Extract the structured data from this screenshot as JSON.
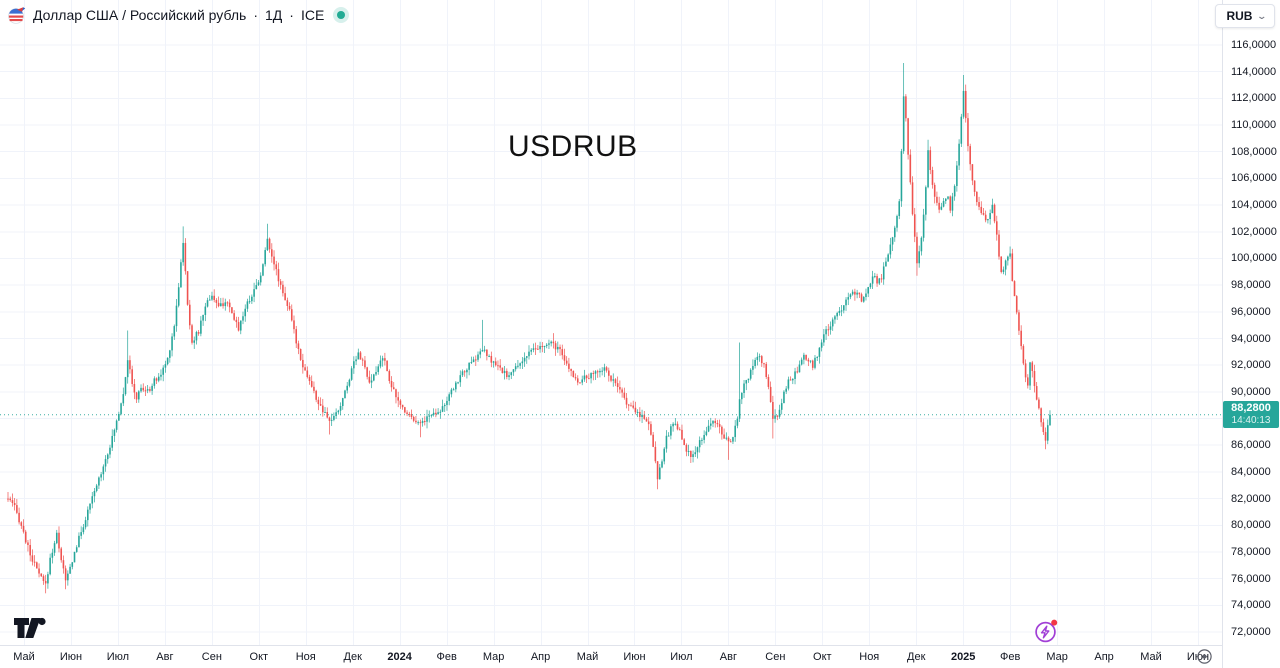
{
  "header": {
    "symbol_title": "Доллар США / Российский рубль",
    "separator": "·",
    "interval": "1Д",
    "exchange": "ICE",
    "status_dot_color": "#22ab94"
  },
  "currency_button": {
    "label": "RUB",
    "chevron": "⌄"
  },
  "watermark": "USDRUB",
  "price_scale": {
    "ticks": [
      "116,0000",
      "114,0000",
      "112,0000",
      "110,0000",
      "108,0000",
      "106,0000",
      "104,0000",
      "102,0000",
      "100,0000",
      "98,0000",
      "96,0000",
      "94,0000",
      "92,0000",
      "90,0000",
      "88,0000",
      "86,0000",
      "84,0000",
      "82,0000",
      "80,0000",
      "78,0000",
      "76,0000",
      "74,0000",
      "72,0000"
    ],
    "last_price_label": "88,2800",
    "countdown": "14:40:13",
    "badge_color": "#26a69a"
  },
  "time_scale": {
    "labels": [
      "Май",
      "Июн",
      "Июл",
      "Авг",
      "Сен",
      "Окт",
      "Ноя",
      "Дек",
      "2024",
      "Фев",
      "Мар",
      "Апр",
      "Май",
      "Июн",
      "Июл",
      "Авг",
      "Сен",
      "Окт",
      "Ноя",
      "Дек",
      "2025",
      "Фев",
      "Мар",
      "Апр",
      "Май",
      "Июн"
    ]
  },
  "chart_data": {
    "type": "candlestick",
    "symbol": "USDRUB",
    "interval": "1D",
    "exchange": "ICE",
    "last_price": 88.28,
    "up_color": "#26a69a",
    "down_color": "#ef5350",
    "grid_color": "#f0f3fa",
    "price_axis": {
      "min": 72,
      "max": 116,
      "step": 2
    },
    "candle_count": 471,
    "waypoints": [
      [
        0,
        82.0
      ],
      [
        3,
        81.3
      ],
      [
        6,
        80.0
      ],
      [
        9,
        78.3
      ],
      [
        12,
        77.0
      ],
      [
        15,
        76.0
      ],
      [
        17,
        75.5
      ],
      [
        19,
        77.5
      ],
      [
        22,
        79.3
      ],
      [
        24,
        77.5
      ],
      [
        26,
        75.8
      ],
      [
        28,
        76.8
      ],
      [
        31,
        78.5
      ],
      [
        34,
        80.0
      ],
      [
        38,
        82.0
      ],
      [
        41,
        83.5
      ],
      [
        44,
        85.0
      ],
      [
        47,
        86.5
      ],
      [
        50,
        88.5
      ],
      [
        52,
        90.0
      ],
      [
        54,
        92.5
      ],
      [
        56,
        90.5
      ],
      [
        58,
        89.5
      ],
      [
        60,
        90.3
      ],
      [
        63,
        90.0
      ],
      [
        66,
        90.8
      ],
      [
        69,
        91.3
      ],
      [
        72,
        92.5
      ],
      [
        75,
        95.0
      ],
      [
        77,
        98.0
      ],
      [
        79,
        101.3
      ],
      [
        81,
        96.5
      ],
      [
        83,
        93.8
      ],
      [
        86,
        94.5
      ],
      [
        89,
        96.5
      ],
      [
        92,
        97.3
      ],
      [
        95,
        96.3
      ],
      [
        98,
        96.8
      ],
      [
        101,
        95.8
      ],
      [
        104,
        94.8
      ],
      [
        107,
        96.3
      ],
      [
        110,
        97.3
      ],
      [
        113,
        98.3
      ],
      [
        115,
        99.5
      ],
      [
        117,
        101.5
      ],
      [
        119,
        100.3
      ],
      [
        121,
        99.0
      ],
      [
        124,
        97.5
      ],
      [
        127,
        96.0
      ],
      [
        130,
        93.8
      ],
      [
        133,
        92.0
      ],
      [
        136,
        90.8
      ],
      [
        139,
        89.5
      ],
      [
        142,
        88.5
      ],
      [
        145,
        87.8
      ],
      [
        148,
        88.3
      ],
      [
        150,
        89.0
      ],
      [
        153,
        90.5
      ],
      [
        156,
        92.3
      ],
      [
        158,
        93.0
      ],
      [
        161,
        91.8
      ],
      [
        163,
        90.5
      ],
      [
        166,
        91.5
      ],
      [
        169,
        92.7
      ],
      [
        172,
        91.0
      ],
      [
        175,
        89.5
      ],
      [
        178,
        88.8
      ],
      [
        181,
        88.3
      ],
      [
        184,
        87.9
      ],
      [
        186,
        87.6
      ],
      [
        189,
        88.1
      ],
      [
        192,
        88.4
      ],
      [
        195,
        88.7
      ],
      [
        198,
        89.3
      ],
      [
        201,
        90.3
      ],
      [
        204,
        91.2
      ],
      [
        207,
        91.8
      ],
      [
        210,
        92.3
      ],
      [
        214,
        93.2
      ],
      [
        217,
        92.5
      ],
      [
        220,
        92.0
      ],
      [
        223,
        91.5
      ],
      [
        226,
        91.2
      ],
      [
        229,
        91.8
      ],
      [
        233,
        92.6
      ],
      [
        237,
        93.1
      ],
      [
        240,
        93.3
      ],
      [
        243,
        93.5
      ],
      [
        246,
        93.6
      ],
      [
        249,
        93.0
      ],
      [
        251,
        92.3
      ],
      [
        254,
        91.5
      ],
      [
        257,
        90.8
      ],
      [
        260,
        91.0
      ],
      [
        264,
        91.3
      ],
      [
        267,
        91.7
      ],
      [
        269,
        91.8
      ],
      [
        272,
        91.0
      ],
      [
        275,
        90.3
      ],
      [
        278,
        89.5
      ],
      [
        281,
        88.8
      ],
      [
        284,
        88.4
      ],
      [
        287,
        88.1
      ],
      [
        289,
        87.6
      ],
      [
        291,
        86.0
      ],
      [
        293,
        83.6
      ],
      [
        295,
        85.0
      ],
      [
        297,
        86.5
      ],
      [
        299,
        87.3
      ],
      [
        301,
        87.8
      ],
      [
        303,
        87.0
      ],
      [
        305,
        85.8
      ],
      [
        308,
        85.2
      ],
      [
        310,
        85.4
      ],
      [
        312,
        86.2
      ],
      [
        315,
        87.2
      ],
      [
        318,
        87.8
      ],
      [
        320,
        87.5
      ],
      [
        322,
        87.0
      ],
      [
        325,
        86.1
      ],
      [
        327,
        86.8
      ],
      [
        329,
        87.8
      ],
      [
        330,
        89.5
      ],
      [
        332,
        90.5
      ],
      [
        334,
        91.0
      ],
      [
        336,
        92.0
      ],
      [
        339,
        92.6
      ],
      [
        341,
        92.0
      ],
      [
        343,
        90.3
      ],
      [
        345,
        87.9
      ],
      [
        347,
        88.3
      ],
      [
        349,
        89.3
      ],
      [
        352,
        90.8
      ],
      [
        356,
        91.5
      ],
      [
        359,
        92.6
      ],
      [
        361,
        92.3
      ],
      [
        363,
        92.0
      ],
      [
        365,
        92.8
      ],
      [
        367,
        93.8
      ],
      [
        369,
        94.5
      ],
      [
        371,
        95.0
      ],
      [
        374,
        95.8
      ],
      [
        376,
        96.3
      ],
      [
        378,
        97.0
      ],
      [
        380,
        97.4
      ],
      [
        382,
        97.5
      ],
      [
        385,
        96.9
      ],
      [
        387,
        97.2
      ],
      [
        390,
        98.8
      ],
      [
        392,
        98.3
      ],
      [
        394,
        98.6
      ],
      [
        397,
        100.5
      ],
      [
        400,
        102.3
      ],
      [
        402,
        104.5
      ],
      [
        404,
        112.0
      ],
      [
        405,
        110.5
      ],
      [
        406,
        108.0
      ],
      [
        407,
        105.5
      ],
      [
        409,
        101.5
      ],
      [
        410,
        99.5
      ],
      [
        412,
        101.5
      ],
      [
        414,
        105.5
      ],
      [
        415,
        108.3
      ],
      [
        416,
        106.5
      ],
      [
        418,
        104.8
      ],
      [
        420,
        103.8
      ],
      [
        422,
        104.3
      ],
      [
        424,
        104.8
      ],
      [
        425,
        103.5
      ],
      [
        427,
        105.5
      ],
      [
        429,
        108.5
      ],
      [
        431,
        112.5
      ],
      [
        432,
        110.5
      ],
      [
        433,
        108.5
      ],
      [
        434,
        107.0
      ],
      [
        436,
        104.8
      ],
      [
        438,
        104.0
      ],
      [
        440,
        103.2
      ],
      [
        442,
        102.8
      ],
      [
        444,
        104.0
      ],
      [
        446,
        102.0
      ],
      [
        447,
        100.3
      ],
      [
        448,
        98.8
      ],
      [
        450,
        99.8
      ],
      [
        452,
        100.3
      ],
      [
        453,
        98.3
      ],
      [
        455,
        96.0
      ],
      [
        457,
        93.5
      ],
      [
        459,
        91.0
      ],
      [
        460,
        90.3
      ],
      [
        461,
        92.2
      ],
      [
        463,
        90.6
      ],
      [
        465,
        88.6
      ],
      [
        467,
        86.8
      ],
      [
        468,
        86.5
      ],
      [
        469,
        87.6
      ],
      [
        470,
        88.28
      ]
    ],
    "wick_extremes": [
      [
        17,
        -74.9
      ],
      [
        26,
        -75.2
      ],
      [
        54,
        94.6
      ],
      [
        79,
        102.4
      ],
      [
        117,
        102.6
      ],
      [
        145,
        -86.8
      ],
      [
        186,
        -86.6
      ],
      [
        214,
        95.4
      ],
      [
        246,
        94.4
      ],
      [
        293,
        -82.7
      ],
      [
        308,
        -84.8
      ],
      [
        325,
        -84.9
      ],
      [
        330,
        93.7
      ],
      [
        345,
        -86.5
      ],
      [
        404,
        114.65
      ],
      [
        410,
        -98.7
      ],
      [
        415,
        108.9
      ],
      [
        431,
        113.75
      ],
      [
        452,
        100.9
      ],
      [
        468,
        -85.7
      ]
    ]
  }
}
